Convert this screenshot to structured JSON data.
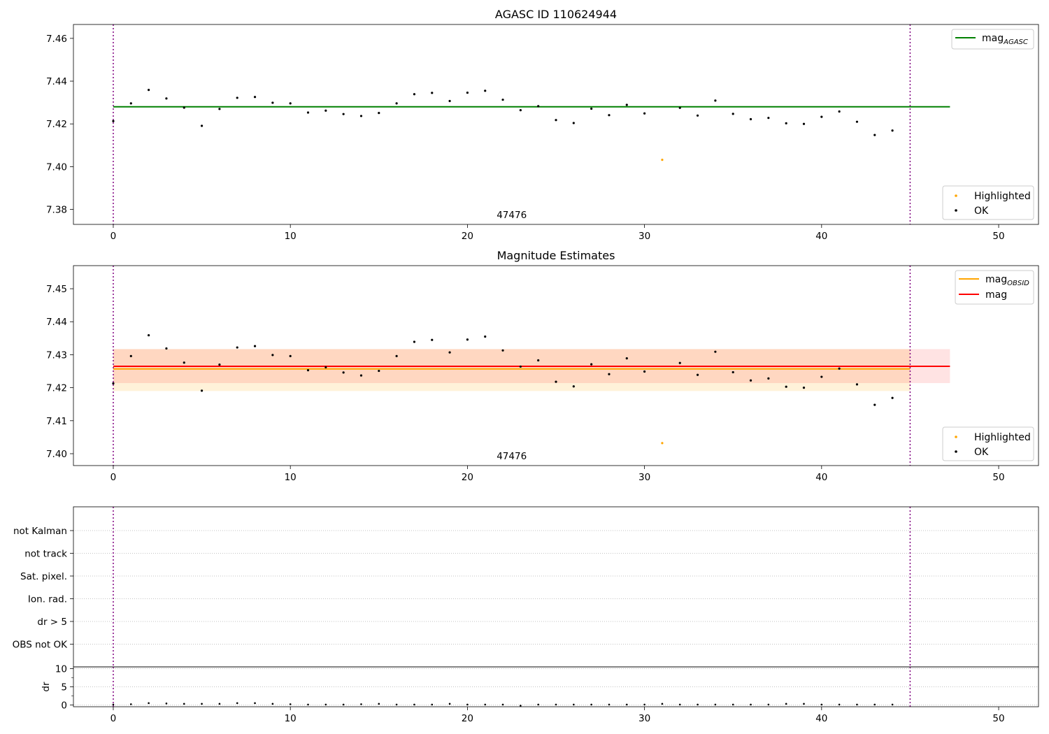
{
  "chart_data": [
    {
      "type": "scatter",
      "title": "AGASC ID 110624944",
      "annotation": "47476",
      "xlim": [
        -2.25,
        52.25
      ],
      "ylim": [
        7.373,
        7.4665
      ],
      "x_ticks": [
        0,
        10,
        20,
        30,
        40,
        50
      ],
      "y_ticks": [
        7.38,
        7.4,
        7.42,
        7.44,
        7.46
      ],
      "y_tick_labels": [
        "7.38",
        "7.40",
        "7.42",
        "7.44",
        "7.46"
      ],
      "vlines": [
        0,
        45
      ],
      "legend_lines": [
        {
          "name": "mag",
          "sub": "AGASC",
          "color": "#008000",
          "y": 7.428,
          "x_range": [
            0,
            47.25
          ]
        }
      ],
      "legend_points": [
        {
          "name": "Highlighted",
          "color": "#ffa500"
        },
        {
          "name": "OK",
          "color": "#000000"
        }
      ],
      "ok_points": {
        "x": [
          0,
          1,
          2,
          3,
          4,
          5,
          6,
          7,
          8,
          9,
          10,
          11,
          12,
          13,
          14,
          15,
          16,
          17,
          18,
          19,
          20,
          21,
          22,
          23,
          24,
          25,
          26,
          27,
          28,
          29,
          30,
          32,
          33,
          34,
          35,
          36,
          37,
          38,
          39,
          40,
          41,
          42,
          43,
          44
        ],
        "y": [
          7.4213,
          7.4296,
          7.4359,
          7.4319,
          7.4276,
          7.4191,
          7.427,
          7.4322,
          7.4326,
          7.4299,
          7.4296,
          7.4253,
          7.4262,
          7.4246,
          7.4237,
          7.4251,
          7.4296,
          7.4339,
          7.4345,
          7.4307,
          7.4346,
          7.4355,
          7.4313,
          7.4264,
          7.4283,
          7.4218,
          7.4204,
          7.4271,
          7.4241,
          7.4289,
          7.4249,
          7.4275,
          7.4239,
          7.4309,
          7.4247,
          7.4222,
          7.4228,
          7.4203,
          7.42,
          7.4233,
          7.4258,
          7.421,
          7.4148,
          7.4169
        ]
      },
      "highlighted_points": {
        "x": [
          31
        ],
        "y": [
          7.4032
        ]
      }
    },
    {
      "type": "scatter",
      "title": "Magnitude Estimates",
      "annotation": "47476",
      "xlim": [
        -2.25,
        52.25
      ],
      "ylim": [
        7.3964,
        7.457
      ],
      "x_ticks": [
        0,
        10,
        20,
        30,
        40,
        50
      ],
      "y_ticks": [
        7.4,
        7.41,
        7.42,
        7.43,
        7.44,
        7.45
      ],
      "y_tick_labels": [
        "7.40",
        "7.41",
        "7.42",
        "7.43",
        "7.44",
        "7.45"
      ],
      "vlines": [
        0,
        45
      ],
      "legend_lines": [
        {
          "name": "mag",
          "sub": "OBSID",
          "color": "#ffa500",
          "y": 7.4257,
          "x_range": [
            0,
            45
          ],
          "band": [
            7.419,
            7.4317
          ]
        },
        {
          "name": "mag",
          "sub": "",
          "color": "#ff0000",
          "y": 7.4265,
          "x_range": [
            0,
            47.25
          ],
          "band": [
            7.4214,
            7.4317
          ]
        }
      ],
      "legend_points": [
        {
          "name": "Highlighted",
          "color": "#ffa500"
        },
        {
          "name": "OK",
          "color": "#000000"
        }
      ],
      "ok_points": {
        "x": [
          0,
          1,
          2,
          3,
          4,
          5,
          6,
          7,
          8,
          9,
          10,
          11,
          12,
          13,
          14,
          15,
          16,
          17,
          18,
          19,
          20,
          21,
          22,
          23,
          24,
          25,
          26,
          27,
          28,
          29,
          30,
          32,
          33,
          34,
          35,
          36,
          37,
          38,
          39,
          40,
          41,
          42,
          43,
          44
        ],
        "y": [
          7.4213,
          7.4296,
          7.4359,
          7.4319,
          7.4276,
          7.4191,
          7.427,
          7.4322,
          7.4326,
          7.4299,
          7.4296,
          7.4253,
          7.4262,
          7.4246,
          7.4237,
          7.4251,
          7.4296,
          7.4339,
          7.4345,
          7.4307,
          7.4346,
          7.4355,
          7.4313,
          7.4264,
          7.4283,
          7.4218,
          7.4204,
          7.4271,
          7.4241,
          7.4289,
          7.4249,
          7.4275,
          7.4239,
          7.4309,
          7.4247,
          7.4222,
          7.4228,
          7.4203,
          7.42,
          7.4233,
          7.4258,
          7.421,
          7.4148,
          7.4169
        ]
      },
      "highlighted_points": {
        "x": [
          31
        ],
        "y": [
          7.4032
        ]
      }
    },
    {
      "type": "scatter",
      "title": "",
      "xlim": [
        -2.25,
        52.25
      ],
      "x_ticks": [
        0,
        10,
        20,
        30,
        40,
        50
      ],
      "flag_labels": [
        "not Kalman",
        "not track",
        "Sat. pixel.",
        "Ion. rad.",
        "dr > 5",
        "OBS not OK"
      ],
      "vlines": [
        0,
        45
      ]
    },
    {
      "type": "scatter",
      "title": "",
      "ylabel": "dr",
      "xlim": [
        -2.25,
        52.25
      ],
      "ylim": [
        -0.5,
        10.5
      ],
      "x_ticks": [
        0,
        10,
        20,
        30,
        40,
        50
      ],
      "y_ticks": [
        0,
        5,
        10
      ],
      "y_tick_labels": [
        "0",
        "5",
        "10"
      ],
      "vlines": [
        0,
        45
      ],
      "points": {
        "x": [
          0,
          1,
          2,
          3,
          4,
          5,
          6,
          7,
          8,
          9,
          10,
          11,
          12,
          13,
          14,
          15,
          16,
          17,
          18,
          19,
          20,
          21,
          22,
          23,
          24,
          25,
          26,
          27,
          28,
          29,
          30,
          31,
          32,
          33,
          34,
          35,
          36,
          37,
          38,
          39,
          40,
          41,
          42,
          43,
          44
        ],
        "y": [
          0.1,
          0.2,
          0.5,
          0.4,
          0.3,
          0.3,
          0.3,
          0.5,
          0.5,
          0.3,
          0.2,
          0.1,
          0.1,
          0.1,
          0.2,
          0.3,
          0.1,
          0.1,
          0.1,
          0.3,
          0.1,
          0.1,
          0.1,
          -0.2,
          0.1,
          0.1,
          0.1,
          0.1,
          0.1,
          0.1,
          0.1,
          0.3,
          0.1,
          0.1,
          0.1,
          0.1,
          0.1,
          0.1,
          0.3,
          0.3,
          0.1,
          0.1,
          0.1,
          0.1,
          0.1
        ]
      }
    }
  ]
}
